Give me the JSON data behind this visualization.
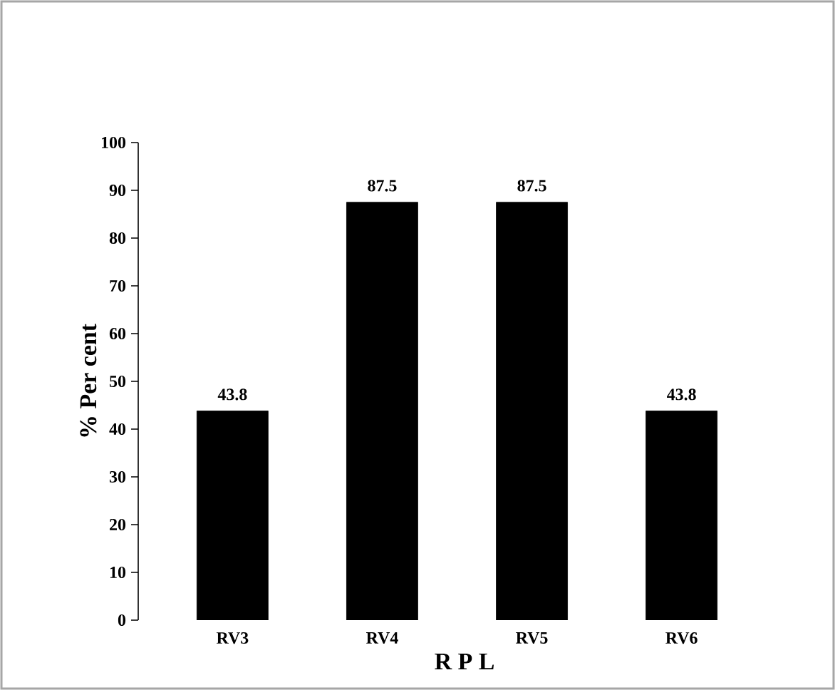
{
  "chart_data": {
    "type": "bar",
    "categories": [
      "RV3",
      "RV4",
      "RV5",
      "RV6"
    ],
    "values": [
      43.8,
      87.5,
      87.5,
      43.8
    ],
    "color": "#000000",
    "ylim": [
      0,
      100
    ],
    "yticks": [
      0,
      10,
      20,
      30,
      40,
      50,
      60,
      70,
      80,
      90,
      100
    ],
    "ylabel": "% Per cent",
    "xlabel": "R P L",
    "data_labels": true,
    "grid": false
  }
}
